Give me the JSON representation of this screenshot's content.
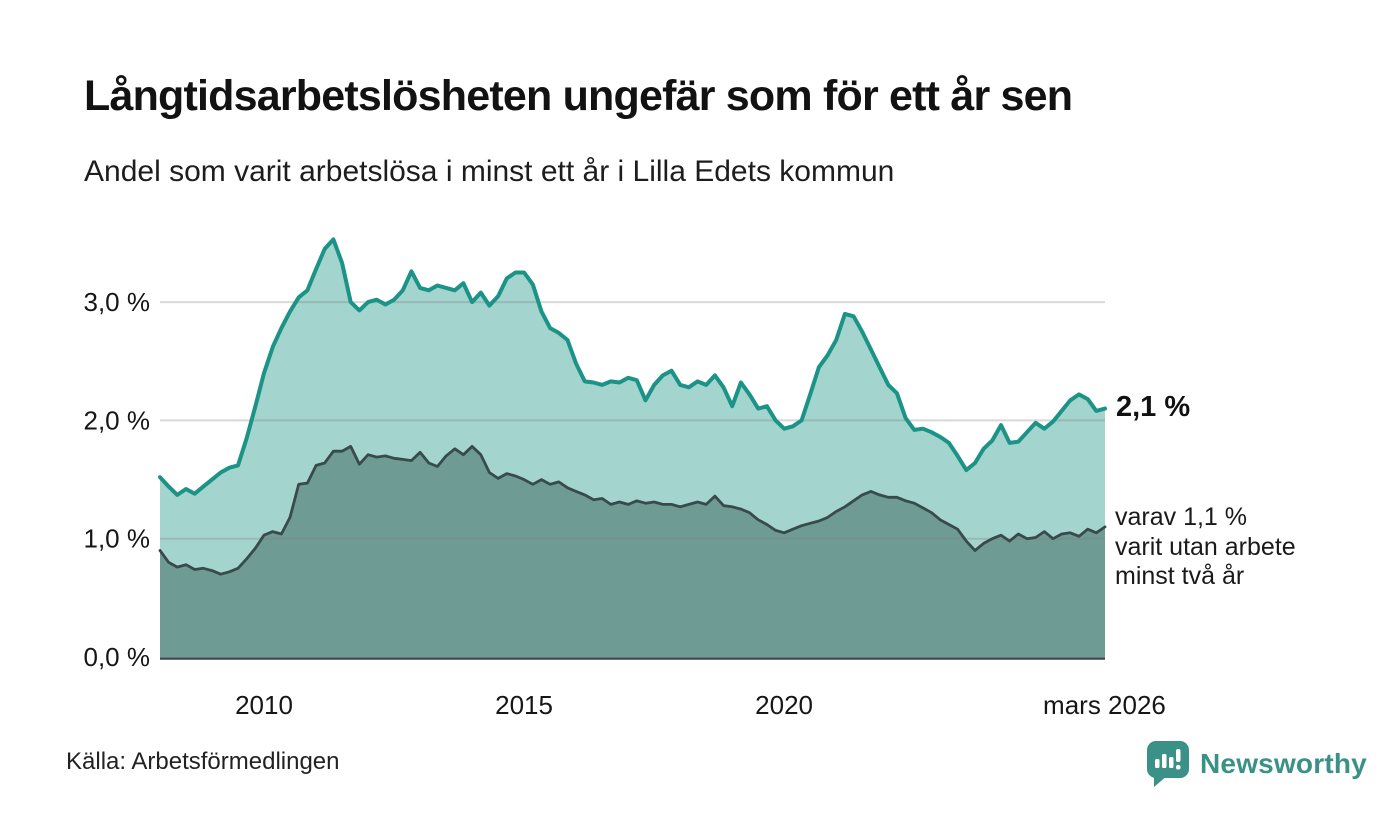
{
  "header": {
    "title": "Långtidsarbetslösheten ungefär som för ett år sen",
    "subtitle": "Andel som varit arbetslösa i minst ett år i Lilla Edets kommun"
  },
  "annotations": {
    "latest_value": "2,1 %",
    "secondary_note": "varav 1,1 %\nvarit utan arbete\nminst två år"
  },
  "footer": {
    "source": "Källa: Arbetsförmedlingen",
    "brand": "Newsworthy"
  },
  "colors": {
    "accent_teal": "#1b9386",
    "light_fill": "#a3d4cd",
    "dark_line": "#394a4d",
    "dark_fill": "#6f9b95",
    "gridline": "rgba(125,125,125,0.30)",
    "axis": "#37474a",
    "brand_teal": "#3a9188"
  },
  "chart_data": {
    "type": "area",
    "title": "Långtidsarbetslösheten ungefär som för ett år sen",
    "subtitle": "Andel som varit arbetslösa i minst ett år i Lilla Edets kommun",
    "x_start": 2008.0,
    "x_end": 2026.17,
    "ylim": [
      0,
      3.7
    ],
    "grid": true,
    "xticks": [
      {
        "year": 2010,
        "label": "2010"
      },
      {
        "year": 2015,
        "label": "2015"
      },
      {
        "year": 2020,
        "label": "2020"
      },
      {
        "year": 2026.16,
        "label": "mars 2026"
      }
    ],
    "yticks": [
      {
        "value": 0,
        "label": "0,0 %"
      },
      {
        "value": 1,
        "label": "1,0 %"
      },
      {
        "value": 2,
        "label": "2,0 %"
      },
      {
        "value": 3,
        "label": "3,0 %"
      }
    ],
    "series": [
      {
        "id": "minst-ett-ar",
        "name": "Arbetslösa minst ett år",
        "color": "#1b9386",
        "fill": "#a3d4cd",
        "line_width": 4,
        "latest_label": "2,1 %",
        "values": [
          1.52,
          1.44,
          1.37,
          1.42,
          1.38,
          1.44,
          1.5,
          1.56,
          1.6,
          1.62,
          1.85,
          2.12,
          2.4,
          2.62,
          2.78,
          2.92,
          3.04,
          3.1,
          3.28,
          3.45,
          3.53,
          3.33,
          3.0,
          2.93,
          3.0,
          3.02,
          2.98,
          3.02,
          3.1,
          3.26,
          3.12,
          3.1,
          3.14,
          3.12,
          3.1,
          3.16,
          3.0,
          3.08,
          2.97,
          3.05,
          3.2,
          3.25,
          3.25,
          3.15,
          2.92,
          2.78,
          2.74,
          2.68,
          2.48,
          2.33,
          2.32,
          2.3,
          2.33,
          2.32,
          2.36,
          2.34,
          2.17,
          2.3,
          2.38,
          2.42,
          2.3,
          2.28,
          2.33,
          2.3,
          2.38,
          2.28,
          2.12,
          2.32,
          2.22,
          2.1,
          2.12,
          2.0,
          1.93,
          1.95,
          2.0,
          2.22,
          2.45,
          2.55,
          2.68,
          2.9,
          2.88,
          2.75,
          2.6,
          2.45,
          2.3,
          2.23,
          2.02,
          1.92,
          1.93,
          1.9,
          1.86,
          1.81,
          1.7,
          1.58,
          1.64,
          1.76,
          1.83,
          1.96,
          1.81,
          1.82,
          1.9,
          1.98,
          1.93,
          1.99,
          2.08,
          2.17,
          2.22,
          2.18,
          2.08,
          2.1
        ]
      },
      {
        "id": "minst-tva-ar",
        "name": "Arbetslösa minst två år",
        "color": "#394a4d",
        "fill": "#6f9b95",
        "line_width": 2.8,
        "latest_label": "1,1 %",
        "values": [
          0.9,
          0.8,
          0.76,
          0.78,
          0.74,
          0.75,
          0.73,
          0.7,
          0.72,
          0.75,
          0.83,
          0.92,
          1.03,
          1.06,
          1.04,
          1.18,
          1.46,
          1.47,
          1.62,
          1.64,
          1.74,
          1.74,
          1.78,
          1.63,
          1.71,
          1.69,
          1.7,
          1.68,
          1.67,
          1.66,
          1.73,
          1.64,
          1.61,
          1.7,
          1.76,
          1.71,
          1.78,
          1.71,
          1.56,
          1.51,
          1.55,
          1.53,
          1.5,
          1.46,
          1.5,
          1.46,
          1.48,
          1.43,
          1.4,
          1.37,
          1.33,
          1.34,
          1.29,
          1.31,
          1.29,
          1.32,
          1.3,
          1.31,
          1.29,
          1.29,
          1.27,
          1.29,
          1.31,
          1.29,
          1.36,
          1.28,
          1.27,
          1.25,
          1.22,
          1.16,
          1.12,
          1.07,
          1.05,
          1.08,
          1.11,
          1.13,
          1.15,
          1.18,
          1.23,
          1.27,
          1.32,
          1.37,
          1.4,
          1.37,
          1.35,
          1.35,
          1.32,
          1.3,
          1.26,
          1.22,
          1.16,
          1.12,
          1.08,
          0.98,
          0.9,
          0.96,
          1.0,
          1.03,
          0.98,
          1.04,
          1.0,
          1.01,
          1.06,
          1.0,
          1.04,
          1.05,
          1.02,
          1.08,
          1.05,
          1.1
        ]
      }
    ]
  }
}
